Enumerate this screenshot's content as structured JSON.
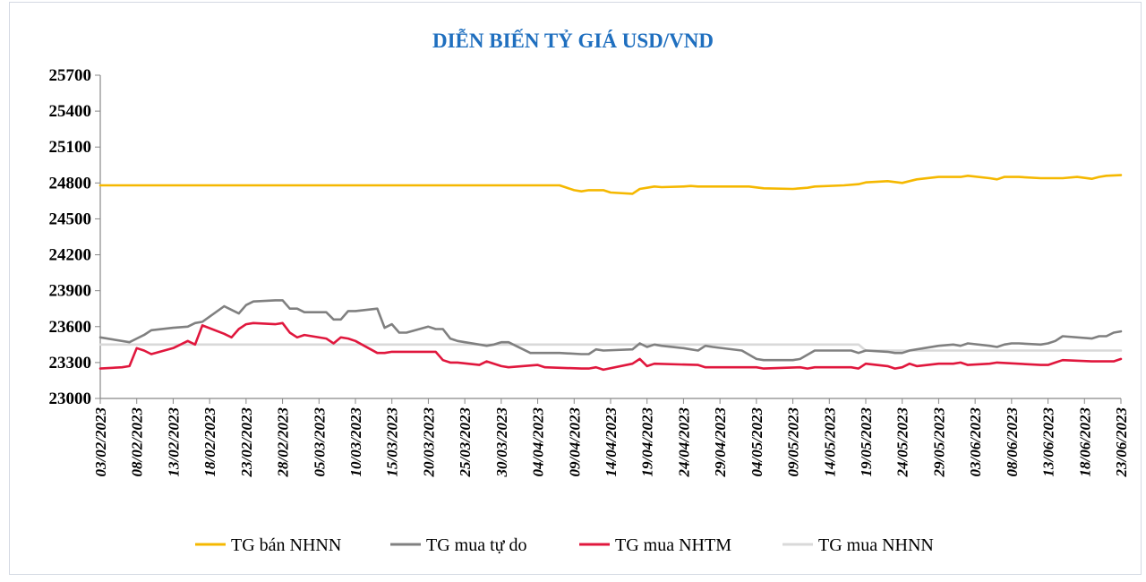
{
  "chart_data": {
    "type": "line",
    "title": "DIỄN BIẾN TỶ GIÁ USD/VND",
    "title_color": "#1f6fbf",
    "xlabel": "",
    "ylabel": "",
    "ylim": [
      23000,
      25700
    ],
    "yticks": [
      "25700",
      "25400",
      "25100",
      "24800",
      "24500",
      "24200",
      "23900",
      "23600",
      "23300",
      "23000"
    ],
    "xtick_labels": [
      "03/02/2023",
      "08/02/2023",
      "13/02/2023",
      "18/02/2023",
      "23/02/2023",
      "28/02/2023",
      "05/03/2023",
      "10/03/2023",
      "15/03/2023",
      "20/03/2023",
      "25/03/2023",
      "30/03/2023",
      "04/04/2023",
      "09/04/2023",
      "14/04/2023",
      "19/04/2023",
      "24/04/2023",
      "29/04/2023",
      "04/05/2023",
      "09/05/2023",
      "14/05/2023",
      "19/05/2023",
      "24/05/2023",
      "29/05/2023",
      "03/06/2023",
      "08/06/2023",
      "13/06/2023",
      "18/06/2023",
      "23/06/2023"
    ],
    "x_start": "03/02/2023",
    "x_end": "23/06/2023",
    "grid": false,
    "legend_position": "bottom",
    "series": [
      {
        "name": "TG bán NHNN",
        "color": "#f5b800",
        "points": [
          [
            "03/02/2023",
            24780
          ],
          [
            "07/04/2023",
            24780
          ],
          [
            "09/04/2023",
            24740
          ],
          [
            "10/04/2023",
            24730
          ],
          [
            "11/04/2023",
            24740
          ],
          [
            "13/04/2023",
            24740
          ],
          [
            "14/04/2023",
            24720
          ],
          [
            "17/04/2023",
            24710
          ],
          [
            "18/04/2023",
            24750
          ],
          [
            "19/04/2023",
            24760
          ],
          [
            "20/04/2023",
            24770
          ],
          [
            "21/04/2023",
            24765
          ],
          [
            "24/04/2023",
            24770
          ],
          [
            "25/04/2023",
            24775
          ],
          [
            "26/04/2023",
            24770
          ],
          [
            "03/05/2023",
            24770
          ],
          [
            "05/05/2023",
            24755
          ],
          [
            "09/05/2023",
            24750
          ],
          [
            "11/05/2023",
            24760
          ],
          [
            "12/05/2023",
            24770
          ],
          [
            "16/05/2023",
            24780
          ],
          [
            "18/05/2023",
            24790
          ],
          [
            "19/05/2023",
            24805
          ],
          [
            "22/05/2023",
            24815
          ],
          [
            "24/05/2023",
            24800
          ],
          [
            "26/05/2023",
            24830
          ],
          [
            "29/05/2023",
            24850
          ],
          [
            "01/06/2023",
            24850
          ],
          [
            "02/06/2023",
            24860
          ],
          [
            "05/06/2023",
            24840
          ],
          [
            "06/06/2023",
            24830
          ],
          [
            "07/06/2023",
            24850
          ],
          [
            "09/06/2023",
            24850
          ],
          [
            "12/06/2023",
            24840
          ],
          [
            "15/06/2023",
            24840
          ],
          [
            "17/06/2023",
            24850
          ],
          [
            "19/06/2023",
            24835
          ],
          [
            "20/06/2023",
            24850
          ],
          [
            "21/06/2023",
            24860
          ],
          [
            "23/06/2023",
            24865
          ]
        ]
      },
      {
        "name": "TG mua tự do",
        "color": "#808080",
        "points": [
          [
            "03/02/2023",
            23510
          ],
          [
            "07/02/2023",
            23470
          ],
          [
            "08/02/2023",
            23500
          ],
          [
            "09/02/2023",
            23530
          ],
          [
            "10/02/2023",
            23570
          ],
          [
            "13/02/2023",
            23590
          ],
          [
            "15/02/2023",
            23600
          ],
          [
            "16/02/2023",
            23630
          ],
          [
            "17/02/2023",
            23640
          ],
          [
            "20/02/2023",
            23770
          ],
          [
            "21/02/2023",
            23740
          ],
          [
            "22/02/2023",
            23710
          ],
          [
            "23/02/2023",
            23780
          ],
          [
            "24/02/2023",
            23810
          ],
          [
            "27/02/2023",
            23820
          ],
          [
            "28/02/2023",
            23820
          ],
          [
            "01/03/2023",
            23750
          ],
          [
            "02/03/2023",
            23750
          ],
          [
            "03/03/2023",
            23720
          ],
          [
            "06/03/2023",
            23720
          ],
          [
            "07/03/2023",
            23660
          ],
          [
            "08/03/2023",
            23660
          ],
          [
            "09/03/2023",
            23730
          ],
          [
            "10/03/2023",
            23730
          ],
          [
            "13/03/2023",
            23750
          ],
          [
            "14/03/2023",
            23590
          ],
          [
            "15/03/2023",
            23620
          ],
          [
            "16/03/2023",
            23550
          ],
          [
            "17/03/2023",
            23550
          ],
          [
            "20/03/2023",
            23600
          ],
          [
            "21/03/2023",
            23580
          ],
          [
            "22/03/2023",
            23580
          ],
          [
            "23/03/2023",
            23500
          ],
          [
            "24/03/2023",
            23480
          ],
          [
            "27/03/2023",
            23450
          ],
          [
            "28/03/2023",
            23440
          ],
          [
            "29/03/2023",
            23450
          ],
          [
            "30/03/2023",
            23470
          ],
          [
            "31/03/2023",
            23470
          ],
          [
            "03/04/2023",
            23380
          ],
          [
            "07/04/2023",
            23380
          ],
          [
            "10/04/2023",
            23370
          ],
          [
            "11/04/2023",
            23370
          ],
          [
            "12/04/2023",
            23410
          ],
          [
            "13/04/2023",
            23400
          ],
          [
            "17/04/2023",
            23410
          ],
          [
            "18/04/2023",
            23460
          ],
          [
            "19/04/2023",
            23430
          ],
          [
            "20/04/2023",
            23450
          ],
          [
            "21/04/2023",
            23440
          ],
          [
            "24/04/2023",
            23420
          ],
          [
            "25/04/2023",
            23410
          ],
          [
            "26/04/2023",
            23400
          ],
          [
            "27/04/2023",
            23440
          ],
          [
            "28/04/2023",
            23430
          ],
          [
            "02/05/2023",
            23400
          ],
          [
            "04/05/2023",
            23330
          ],
          [
            "05/05/2023",
            23320
          ],
          [
            "09/05/2023",
            23320
          ],
          [
            "10/05/2023",
            23330
          ],
          [
            "12/05/2023",
            23400
          ],
          [
            "17/05/2023",
            23400
          ],
          [
            "18/05/2023",
            23380
          ],
          [
            "19/05/2023",
            23400
          ],
          [
            "22/05/2023",
            23390
          ],
          [
            "23/05/2023",
            23380
          ],
          [
            "24/05/2023",
            23380
          ],
          [
            "25/05/2023",
            23400
          ],
          [
            "29/05/2023",
            23440
          ],
          [
            "31/05/2023",
            23450
          ],
          [
            "01/06/2023",
            23440
          ],
          [
            "02/06/2023",
            23460
          ],
          [
            "05/06/2023",
            23440
          ],
          [
            "06/06/2023",
            23430
          ],
          [
            "07/06/2023",
            23450
          ],
          [
            "08/06/2023",
            23460
          ],
          [
            "09/06/2023",
            23460
          ],
          [
            "12/06/2023",
            23450
          ],
          [
            "13/06/2023",
            23460
          ],
          [
            "14/06/2023",
            23480
          ],
          [
            "15/06/2023",
            23520
          ],
          [
            "19/06/2023",
            23500
          ],
          [
            "20/06/2023",
            23520
          ],
          [
            "21/06/2023",
            23520
          ],
          [
            "22/06/2023",
            23550
          ],
          [
            "23/06/2023",
            23560
          ]
        ]
      },
      {
        "name": "TG mua NHTM",
        "color": "#e0173d",
        "points": [
          [
            "03/02/2023",
            23250
          ],
          [
            "06/02/2023",
            23260
          ],
          [
            "07/02/2023",
            23270
          ],
          [
            "08/02/2023",
            23420
          ],
          [
            "09/02/2023",
            23400
          ],
          [
            "10/02/2023",
            23370
          ],
          [
            "13/02/2023",
            23420
          ],
          [
            "14/02/2023",
            23450
          ],
          [
            "15/02/2023",
            23480
          ],
          [
            "16/02/2023",
            23450
          ],
          [
            "17/02/2023",
            23610
          ],
          [
            "20/02/2023",
            23540
          ],
          [
            "21/02/2023",
            23510
          ],
          [
            "22/02/2023",
            23580
          ],
          [
            "23/02/2023",
            23620
          ],
          [
            "24/02/2023",
            23630
          ],
          [
            "27/02/2023",
            23620
          ],
          [
            "28/02/2023",
            23630
          ],
          [
            "01/03/2023",
            23550
          ],
          [
            "02/03/2023",
            23510
          ],
          [
            "03/03/2023",
            23530
          ],
          [
            "06/03/2023",
            23500
          ],
          [
            "07/03/2023",
            23460
          ],
          [
            "08/03/2023",
            23510
          ],
          [
            "09/03/2023",
            23500
          ],
          [
            "10/03/2023",
            23480
          ],
          [
            "13/03/2023",
            23380
          ],
          [
            "14/03/2023",
            23380
          ],
          [
            "15/03/2023",
            23390
          ],
          [
            "21/03/2023",
            23390
          ],
          [
            "22/03/2023",
            23320
          ],
          [
            "23/03/2023",
            23300
          ],
          [
            "24/03/2023",
            23300
          ],
          [
            "27/03/2023",
            23280
          ],
          [
            "28/03/2023",
            23310
          ],
          [
            "29/03/2023",
            23290
          ],
          [
            "30/03/2023",
            23270
          ],
          [
            "31/03/2023",
            23260
          ],
          [
            "04/04/2023",
            23280
          ],
          [
            "05/04/2023",
            23260
          ],
          [
            "10/04/2023",
            23250
          ],
          [
            "11/04/2023",
            23250
          ],
          [
            "12/04/2023",
            23260
          ],
          [
            "13/04/2023",
            23240
          ],
          [
            "17/04/2023",
            23290
          ],
          [
            "18/04/2023",
            23330
          ],
          [
            "19/04/2023",
            23270
          ],
          [
            "20/04/2023",
            23290
          ],
          [
            "26/04/2023",
            23280
          ],
          [
            "27/04/2023",
            23260
          ],
          [
            "04/05/2023",
            23260
          ],
          [
            "05/05/2023",
            23250
          ],
          [
            "10/05/2023",
            23260
          ],
          [
            "11/05/2023",
            23250
          ],
          [
            "12/05/2023",
            23260
          ],
          [
            "17/05/2023",
            23260
          ],
          [
            "18/05/2023",
            23250
          ],
          [
            "19/05/2023",
            23290
          ],
          [
            "22/05/2023",
            23270
          ],
          [
            "23/05/2023",
            23250
          ],
          [
            "24/05/2023",
            23260
          ],
          [
            "25/05/2023",
            23290
          ],
          [
            "26/05/2023",
            23270
          ],
          [
            "29/05/2023",
            23290
          ],
          [
            "31/05/2023",
            23290
          ],
          [
            "01/06/2023",
            23300
          ],
          [
            "02/06/2023",
            23280
          ],
          [
            "05/06/2023",
            23290
          ],
          [
            "06/06/2023",
            23300
          ],
          [
            "12/06/2023",
            23280
          ],
          [
            "13/06/2023",
            23280
          ],
          [
            "14/06/2023",
            23300
          ],
          [
            "15/06/2023",
            23320
          ],
          [
            "19/06/2023",
            23310
          ],
          [
            "20/06/2023",
            23310
          ],
          [
            "22/06/2023",
            23310
          ],
          [
            "23/06/2023",
            23330
          ]
        ]
      },
      {
        "name": "TG mua NHNN",
        "color": "#d9d9d9",
        "points": [
          [
            "03/02/2023",
            23450
          ],
          [
            "18/05/2023",
            23450
          ],
          [
            "19/05/2023",
            23400
          ],
          [
            "23/06/2023",
            23400
          ]
        ]
      }
    ]
  }
}
